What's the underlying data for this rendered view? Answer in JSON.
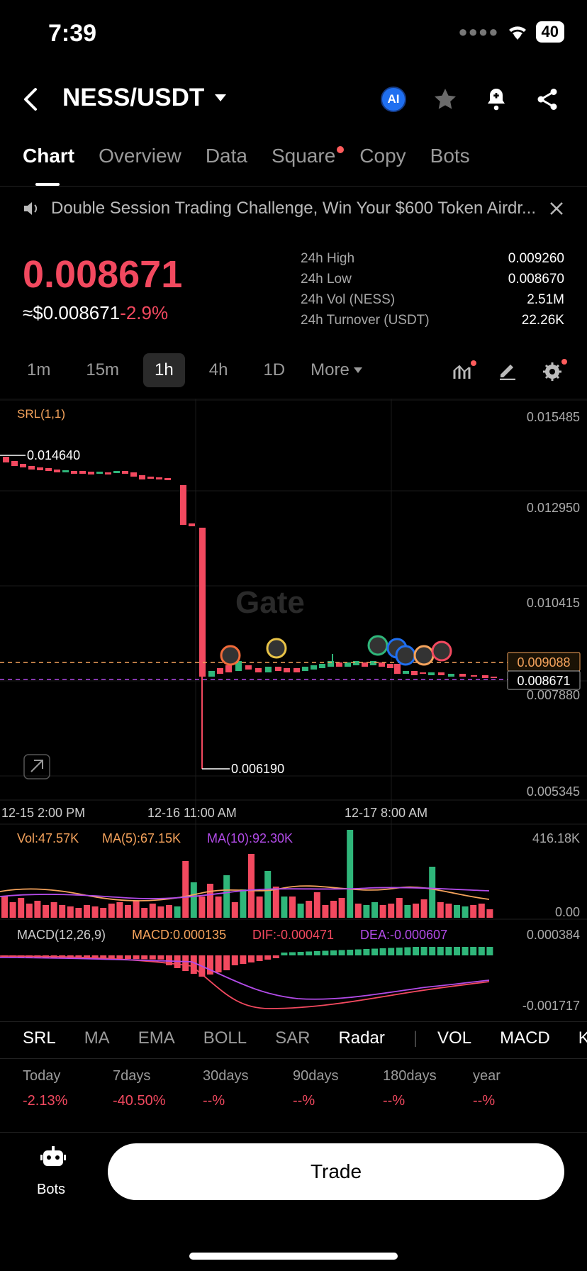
{
  "status": {
    "time": "7:39",
    "battery": "40"
  },
  "header": {
    "pair": "NESS/USDT",
    "ai_badge": "AI"
  },
  "tabs": [
    {
      "label": "Chart",
      "active": true
    },
    {
      "label": "Overview"
    },
    {
      "label": "Data"
    },
    {
      "label": "Square",
      "dot": true
    },
    {
      "label": "Copy"
    },
    {
      "label": "Bots"
    }
  ],
  "banner": {
    "text": "Double Session Trading Challenge, Win Your $600 Token Airdr..."
  },
  "price": {
    "last": "0.008671",
    "usd": "≈$0.008671",
    "change": "-2.9%"
  },
  "stats": [
    {
      "label": "24h High",
      "value": "0.009260"
    },
    {
      "label": "24h Low",
      "value": "0.008670"
    },
    {
      "label": "24h Vol (NESS)",
      "value": "2.51M"
    },
    {
      "label": "24h Turnover (USDT)",
      "value": "22.26K"
    }
  ],
  "intervals": [
    "1m",
    "15m",
    "1h",
    "4h",
    "1D",
    "More"
  ],
  "active_interval": "1h",
  "chart": {
    "indicator_label": "SRL(1,1)",
    "y_labels": [
      "0.015485",
      "0.012950",
      "0.010415",
      "0.007880",
      "0.005345"
    ],
    "x_labels": [
      "12-15 2:00 PM",
      "12-16 11:00 AM",
      "12-17 8:00 AM"
    ],
    "high_marker": "0.014640",
    "low_marker": "0.006190",
    "price_tag_orange": "0.009088",
    "price_tag_last": "0.008671",
    "watermark": "Gate",
    "vol": {
      "vol": "Vol:47.57K",
      "ma5": "MA(5):67.15K",
      "ma10": "MA(10):92.30K",
      "max": "416.18K",
      "min": "0.00"
    },
    "macd": {
      "label": "MACD(12,26,9)",
      "macd": "MACD:0.000135",
      "dif": "DIF:-0.000471",
      "dea": "DEA:-0.000607",
      "max": "0.000384",
      "min": "-0.001717"
    },
    "colors": {
      "up": "#2fb67a",
      "down": "#f2495f",
      "ma5": "#f5a35c",
      "ma10": "#b24be8"
    }
  },
  "indicators": [
    "SRL",
    "MA",
    "EMA",
    "BOLL",
    "SAR",
    "Radar",
    "VOL",
    "MACD",
    "KD"
  ],
  "performance": [
    {
      "label": "Today",
      "value": "-2.13%"
    },
    {
      "label": "7days",
      "value": "-40.50%"
    },
    {
      "label": "30days",
      "value": "--%"
    },
    {
      "label": "90days",
      "value": "--%"
    },
    {
      "label": "180days",
      "value": "--%"
    },
    {
      "label": "year",
      "value": "--%"
    }
  ],
  "bottom": {
    "bots_label": "Bots",
    "trade_label": "Trade"
  }
}
